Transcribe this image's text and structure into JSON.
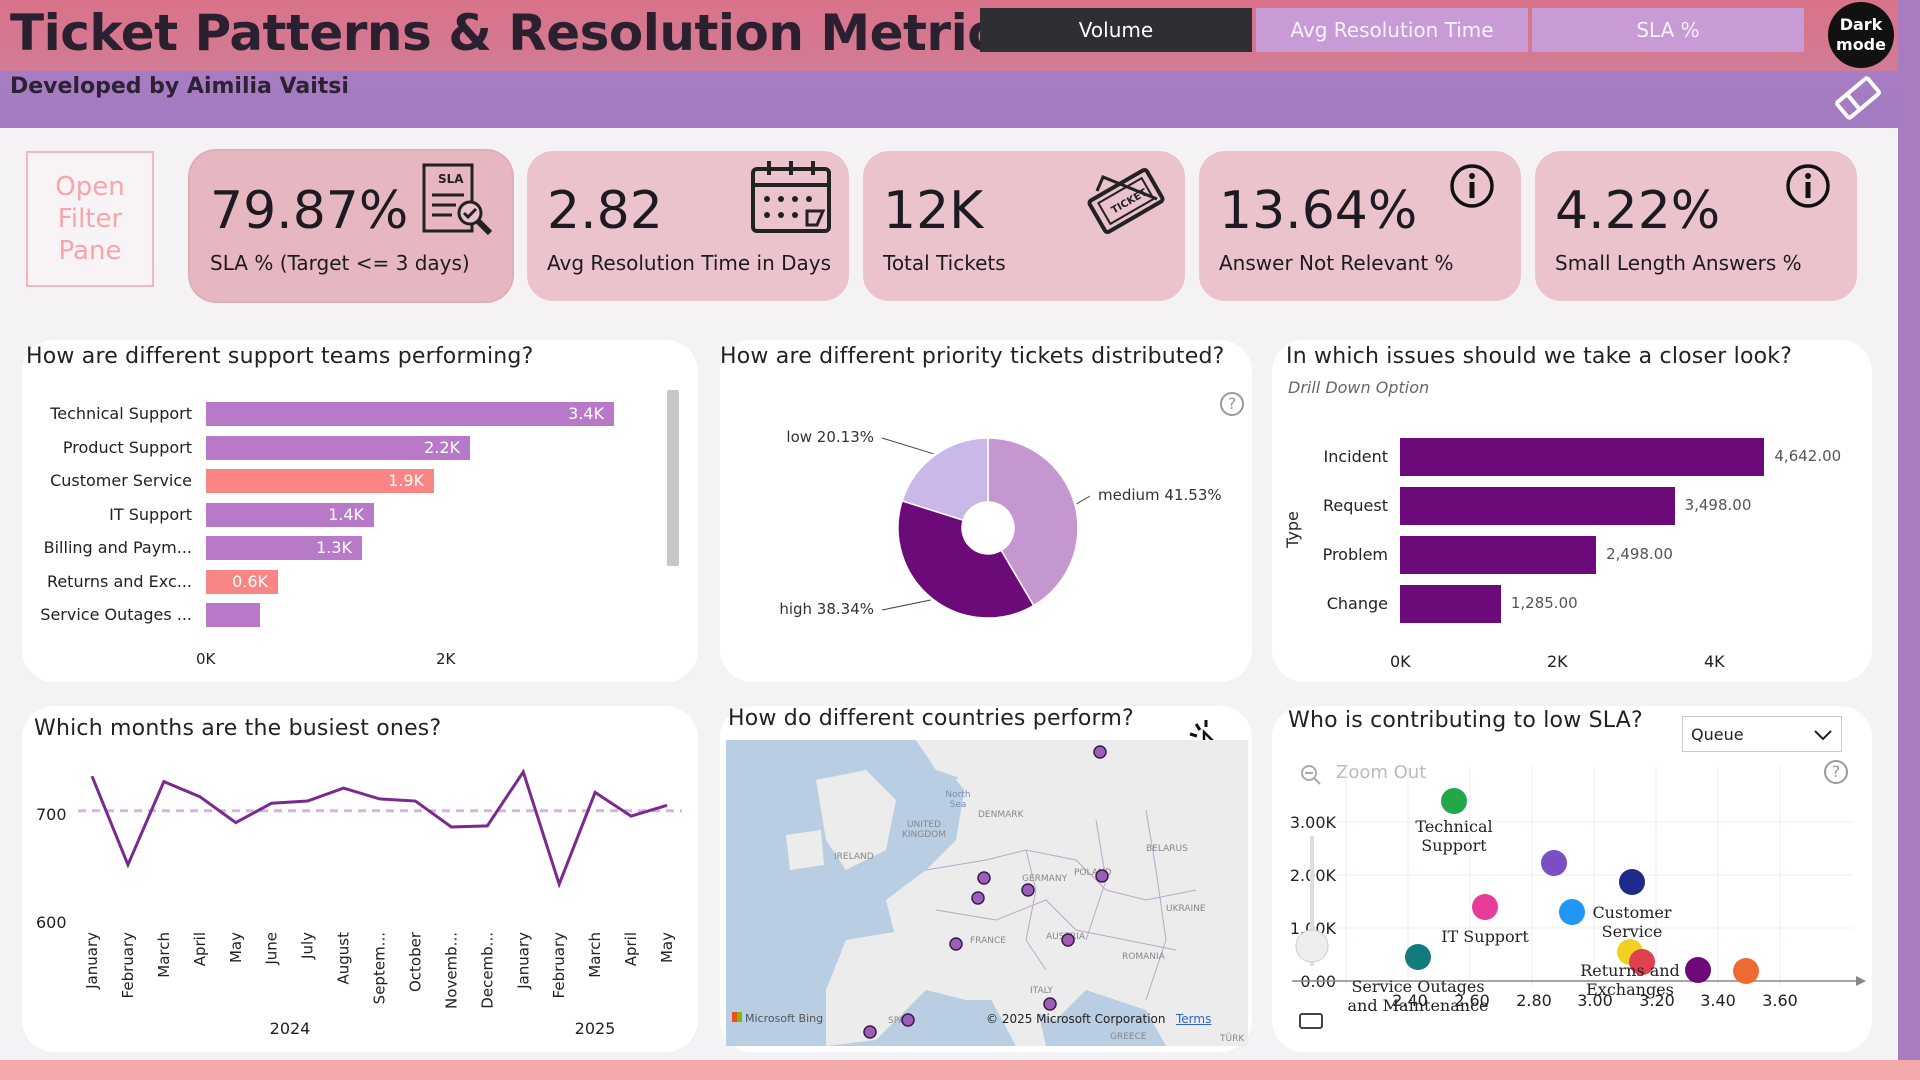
{
  "header": {
    "title": "Ticket Patterns & Resolution Metrics",
    "subtitle": "Developed by Aimilia Vaitsi",
    "tabs": [
      "Volume",
      "Avg Resolution Time",
      "SLA %"
    ],
    "dark_mode": "Dark mode"
  },
  "filter_pane": "Open Filter Pane",
  "kpis": [
    {
      "value": "79.87%",
      "label": "SLA % (Target <= 3 days)",
      "icon": "sla-document-icon"
    },
    {
      "value": "2.82",
      "label": "Avg Resolution Time in Days",
      "icon": "calendar-icon"
    },
    {
      "value": "12K",
      "label": "Total Tickets",
      "icon": "ticket-icon"
    },
    {
      "value": "13.64%",
      "label": "Answer Not Relevant %",
      "icon": "info-icon"
    },
    {
      "value": "4.22%",
      "label": "Small Length Answers %",
      "icon": "info-icon"
    }
  ],
  "teams": {
    "title": "How are different support teams performing?",
    "rows": [
      {
        "label": "Technical Support",
        "value": 3.4,
        "display": "3.4K",
        "color": "#b87ac8"
      },
      {
        "label": "Product Support",
        "value": 2.2,
        "display": "2.2K",
        "color": "#b87ac8"
      },
      {
        "label": "Customer Service",
        "value": 1.9,
        "display": "1.9K",
        "color": "#f98585"
      },
      {
        "label": "IT Support",
        "value": 1.4,
        "display": "1.4K",
        "color": "#b87ac8"
      },
      {
        "label": "Billing and Paym...",
        "value": 1.3,
        "display": "1.3K",
        "color": "#b87ac8"
      },
      {
        "label": "Returns and Exc...",
        "value": 0.6,
        "display": "0.6K",
        "color": "#f98585"
      },
      {
        "label": "Service Outages ...",
        "value": 0.45,
        "display": "",
        "color": "#b87ac8"
      }
    ],
    "ticks": [
      "0K",
      "2K"
    ]
  },
  "priority": {
    "title": "How are different priority tickets distributed?",
    "help": "?",
    "slices": [
      {
        "label": "medium 41.53%",
        "value": 41.53,
        "color": "#c497d0"
      },
      {
        "label": "high 38.34%",
        "value": 38.34,
        "color": "#6b0a78"
      },
      {
        "label": "low 20.13%",
        "value": 20.13,
        "color": "#c9b8e8"
      }
    ]
  },
  "issues": {
    "title": "In which issues should we take a closer look?",
    "subtitle": "Drill Down Option",
    "axis_label": "Type",
    "rows": [
      {
        "label": "Incident",
        "value": 4642,
        "display": "4,642.00"
      },
      {
        "label": "Request",
        "value": 3498,
        "display": "3,498.00"
      },
      {
        "label": "Problem",
        "value": 2498,
        "display": "2,498.00"
      },
      {
        "label": "Change",
        "value": 1285,
        "display": "1,285.00"
      }
    ],
    "ticks": [
      "0K",
      "2K",
      "4K"
    ],
    "color": "#6b0a78"
  },
  "months": {
    "title": "Which months are the busiest ones?",
    "y_ticks": [
      "700",
      "600"
    ],
    "labels": [
      "January",
      "February",
      "March",
      "April",
      "May",
      "June",
      "July",
      "August",
      "Septem...",
      "October",
      "Novemb...",
      "Decemb...",
      "January",
      "February",
      "March",
      "April",
      "May"
    ],
    "values": [
      735,
      653,
      730,
      716,
      692,
      710,
      712,
      724,
      714,
      712,
      688,
      689,
      739,
      635,
      720,
      698,
      708
    ],
    "average": 703,
    "years": [
      "2024",
      "2025"
    ],
    "color": "#7a2a8e"
  },
  "countries": {
    "title": "How do different countries perform?",
    "labels": [
      "North Sea",
      "DENMARK",
      "UNITED KINGDOM",
      "IRELAND",
      "BELARUS",
      "POLAND",
      "GERMANY",
      "UKRAINE",
      "FRANCE",
      "AUSTRIA",
      "ROMANIA",
      "ITALY",
      "SPAIN",
      "GREECE",
      "TÜRK"
    ],
    "attribution": "© 2025 Microsoft Corporation",
    "terms": "Terms",
    "bing": "Microsoft Bing"
  },
  "low_sla": {
    "title": "Who is contributing to low SLA?",
    "dropdown": "Queue",
    "zoom_out": "Zoom Out",
    "help": "?",
    "y_ticks": [
      "3.00K",
      "2.00K",
      "1.00K",
      "0.00"
    ],
    "x_ticks": [
      "2.40",
      "2.60",
      "2.80",
      "3.00",
      "3.20",
      "3.40",
      "3.60"
    ],
    "points": [
      {
        "name": "Technical Support",
        "color": "#22a84a"
      },
      {
        "name": "",
        "color": "#7b4fc4"
      },
      {
        "name": "Customer Service",
        "color": "#1e2a8c"
      },
      {
        "name": "IT Support",
        "color": "#e83c9a"
      },
      {
        "name": "",
        "color": "#2196f3"
      },
      {
        "name": "Service Outages and Maintenance",
        "color": "#137b7b"
      },
      {
        "name": "Returns and Exchanges",
        "color": "#f0d020"
      },
      {
        "name": "",
        "color": "#e04050"
      },
      {
        "name": "",
        "color": "#6b0a78"
      },
      {
        "name": "",
        "color": "#ef6a30"
      }
    ]
  }
}
